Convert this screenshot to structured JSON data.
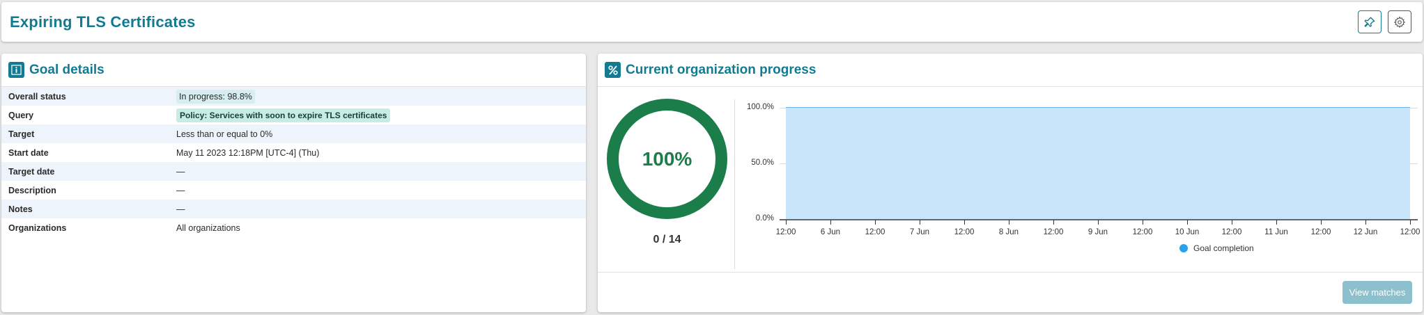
{
  "header": {
    "title": "Expiring TLS Certificates",
    "pin_icon": "pin-icon",
    "settings_icon": "gear-icon"
  },
  "goal_details": {
    "title": "Goal details",
    "icon": "info-icon",
    "rows": [
      {
        "label": "Overall status",
        "value": "In progress: 98.8%"
      },
      {
        "label": "Query",
        "value": "Policy: Services with soon to expire TLS certificates"
      },
      {
        "label": "Target",
        "value": "Less than or equal to 0%"
      },
      {
        "label": "Start date",
        "value": "May 11 2023 12:18PM [UTC-4] (Thu)"
      },
      {
        "label": "Target date",
        "value": "—"
      },
      {
        "label": "Description",
        "value": "—"
      },
      {
        "label": "Notes",
        "value": "—"
      },
      {
        "label": "Organizations",
        "value": "All organizations"
      }
    ]
  },
  "progress": {
    "title": "Current organization progress",
    "icon": "percent-icon",
    "donut_percent": "100%",
    "donut_count": "0 / 14",
    "donut_color": "#1a7d4a",
    "view_matches_label": "View matches"
  },
  "chart_data": {
    "type": "area",
    "title": "",
    "xlabel": "",
    "ylabel": "",
    "ylim": [
      0,
      100
    ],
    "y_ticks": [
      "0.0%",
      "50.0%",
      "100.0%"
    ],
    "categories": [
      "12:00",
      "6 Jun",
      "12:00",
      "7 Jun",
      "12:00",
      "8 Jun",
      "12:00",
      "9 Jun",
      "12:00",
      "10 Jun",
      "12:00",
      "11 Jun",
      "12:00",
      "12 Jun",
      "12:00"
    ],
    "series": [
      {
        "name": "Goal completion",
        "color": "#2aa0f0",
        "values": [
          100,
          100,
          100,
          100,
          100,
          100,
          100,
          100,
          100,
          100,
          100,
          100,
          100,
          100,
          100
        ]
      }
    ],
    "legend_position": "bottom",
    "grid": true
  }
}
